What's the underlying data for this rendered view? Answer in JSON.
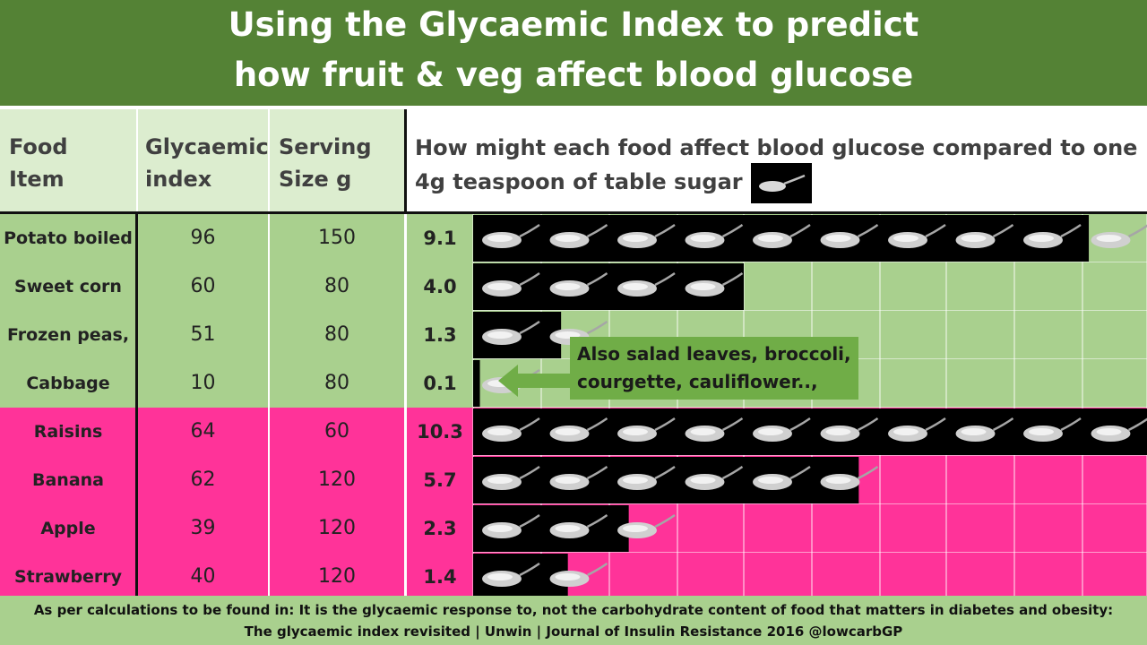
{
  "title": {
    "line1": "Using the Glycaemic Index to predict",
    "line2": "how fruit & veg affect blood glucose"
  },
  "header": {
    "food_line1": "Food",
    "food_line2": "Item",
    "gi_line1": "Glycaemic",
    "gi_line2": "index",
    "serving_line1": "Serving",
    "serving_line2": "Size g",
    "desc_line1": "How might each food affect blood glucose compared to one",
    "desc_line2": "4g teaspoon of table sugar",
    "icon": "teaspoon-of-sugar-icon"
  },
  "note": {
    "line1": "Also salad leaves, broccoli,",
    "line2": "courgette, cauliflower..,"
  },
  "footer": {
    "line1": "As per calculations to be found in: It is the glycaemic response to, not the carbohydrate content of food that matters in diabetes and obesity:",
    "line2": "The glycaemic index revisited | Unwin | Journal of Insulin Resistance 2016  @lowcarbGP"
  },
  "colors": {
    "title_bg": "#548235",
    "veg": "#a9d08e",
    "fruit": "#ff3399",
    "spoon_bar": "#000000",
    "note_bg": "#70ad47"
  },
  "chart_data": {
    "type": "table",
    "unit_icon": "teaspoon-of-sugar-icon",
    "max_scale": 10,
    "rows": [
      {
        "food": "Potato boiled",
        "gi": 96,
        "serving_g": 150,
        "teaspoons": 9.1,
        "group": "veg"
      },
      {
        "food": "Sweet corn",
        "gi": 60,
        "serving_g": 80,
        "teaspoons": 4.0,
        "group": "veg"
      },
      {
        "food": "Frozen peas,",
        "gi": 51,
        "serving_g": 80,
        "teaspoons": 1.3,
        "group": "veg"
      },
      {
        "food": "Cabbage",
        "gi": 10,
        "serving_g": 80,
        "teaspoons": 0.1,
        "group": "veg"
      },
      {
        "food": "Raisins",
        "gi": 64,
        "serving_g": 60,
        "teaspoons": 10.3,
        "group": "fruit"
      },
      {
        "food": "Banana",
        "gi": 62,
        "serving_g": 120,
        "teaspoons": 5.7,
        "group": "fruit"
      },
      {
        "food": "Apple",
        "gi": 39,
        "serving_g": 120,
        "teaspoons": 2.3,
        "group": "fruit"
      },
      {
        "food": "Strawberry",
        "gi": 40,
        "serving_g": 120,
        "teaspoons": 1.4,
        "group": "fruit"
      }
    ]
  }
}
